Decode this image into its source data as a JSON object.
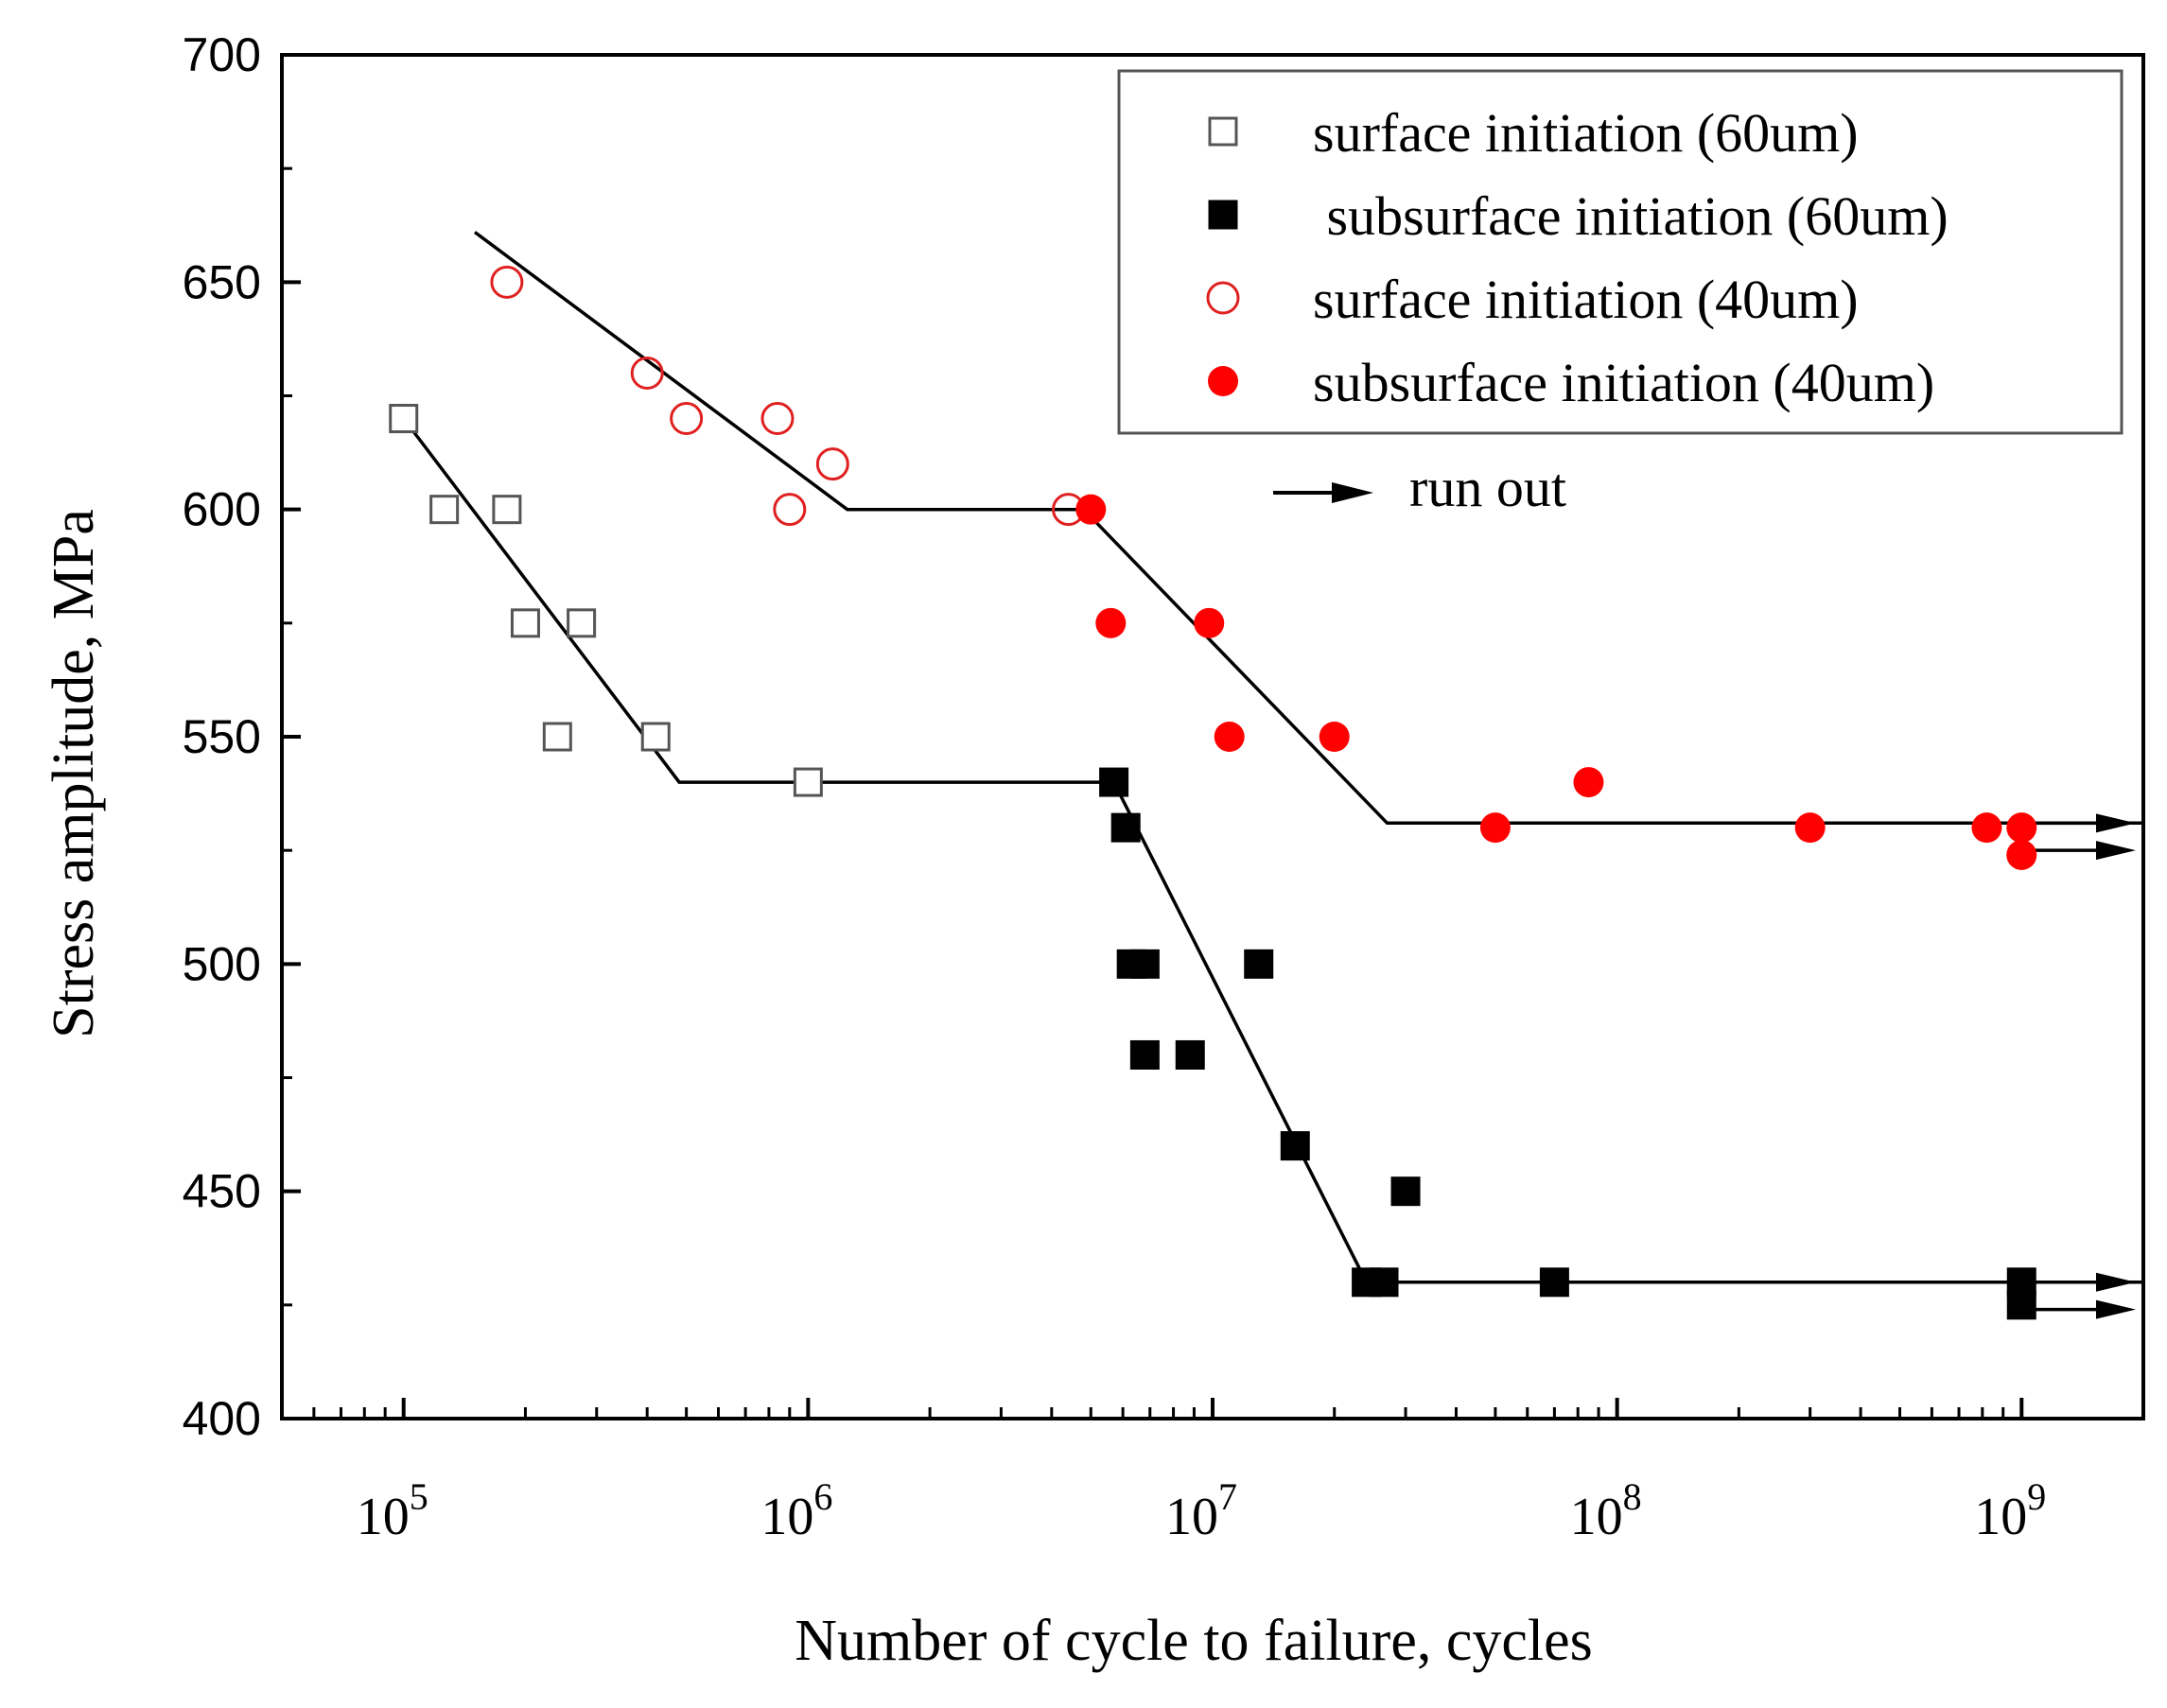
{
  "chart_data": {
    "type": "scatter",
    "xscale": "log",
    "xlim": [
      50000,
      2000000000
    ],
    "ylim": [
      400,
      700
    ],
    "xlabel": "Number of cycle to failure, cycles",
    "ylabel": "Stress amplitude, MPa",
    "y_ticks": [
      "400",
      "450",
      "500",
      "550",
      "600",
      "650",
      "700"
    ],
    "x_ticks": [
      {
        "base": "10",
        "exp": "5",
        "value": 100000
      },
      {
        "base": "10",
        "exp": "6",
        "value": 1000000
      },
      {
        "base": "10",
        "exp": "7",
        "value": 10000000
      },
      {
        "base": "10",
        "exp": "8",
        "value": 100000000
      },
      {
        "base": "10",
        "exp": "9",
        "value": 1000000000
      }
    ],
    "grid": false,
    "legend_position": "top-right",
    "series": [
      {
        "name": "surface initiation (60um)",
        "marker": "square-open",
        "color": "#555555",
        "points": [
          [
            100000,
            620
          ],
          [
            126000,
            600
          ],
          [
            180000,
            600
          ],
          [
            200000,
            575
          ],
          [
            275000,
            575
          ],
          [
            240000,
            550
          ],
          [
            420000,
            550
          ],
          [
            1000000,
            540
          ]
        ]
      },
      {
        "name": " subsurface initiation (60um)",
        "marker": "square-filled",
        "color": "#000000",
        "points": [
          [
            5700000,
            540
          ],
          [
            6100000,
            530
          ],
          [
            6300000,
            500
          ],
          [
            6800000,
            500
          ],
          [
            6800000,
            480
          ],
          [
            8800000,
            480
          ],
          [
            13000000,
            500
          ],
          [
            16000000,
            460
          ],
          [
            24000000,
            430
          ],
          [
            26500000,
            430
          ],
          [
            30000000,
            450
          ],
          [
            70000000,
            430
          ],
          [
            1000000000,
            430
          ],
          [
            1000000000,
            425
          ]
        ]
      },
      {
        "name": "surface initiation (40um)",
        "marker": "circle-open",
        "color": "#e02020",
        "points": [
          [
            180000,
            650
          ],
          [
            400000,
            630
          ],
          [
            500000,
            620
          ],
          [
            840000,
            620
          ],
          [
            1150000,
            610
          ],
          [
            900000,
            600
          ],
          [
            4400000,
            600
          ]
        ]
      },
      {
        "name": "subsurface initiation (40um)",
        "marker": "circle-filled",
        "color": "#ff0000",
        "points": [
          [
            5000000,
            600
          ],
          [
            5600000,
            575
          ],
          [
            9800000,
            575
          ],
          [
            11000000,
            550
          ],
          [
            20000000,
            550
          ],
          [
            50000000,
            530
          ],
          [
            85000000,
            540
          ],
          [
            300000000,
            530
          ],
          [
            820000000,
            530
          ],
          [
            1000000000,
            530
          ],
          [
            1000000000,
            524
          ]
        ]
      }
    ],
    "fit_lines": [
      {
        "color": "#000000",
        "points": [
          [
            100000,
            620
          ],
          [
            480000,
            540
          ],
          [
            5700000,
            540
          ],
          [
            24000000,
            430
          ],
          [
            2000000000,
            430
          ]
        ]
      },
      {
        "color": "#000000",
        "points": [
          [
            150000,
            661
          ],
          [
            1250000,
            600
          ],
          [
            4800000,
            600
          ],
          [
            27000000,
            531
          ],
          [
            2000000000,
            531
          ]
        ]
      }
    ],
    "runout_arrows": [
      {
        "from_x": 1000000000,
        "y": 531
      },
      {
        "from_x": 1000000000,
        "y": 525
      },
      {
        "from_x": 1000000000,
        "y": 430
      },
      {
        "from_x": 1000000000,
        "y": 424
      }
    ],
    "annotation": {
      "text": "run out",
      "arrow": true
    }
  }
}
